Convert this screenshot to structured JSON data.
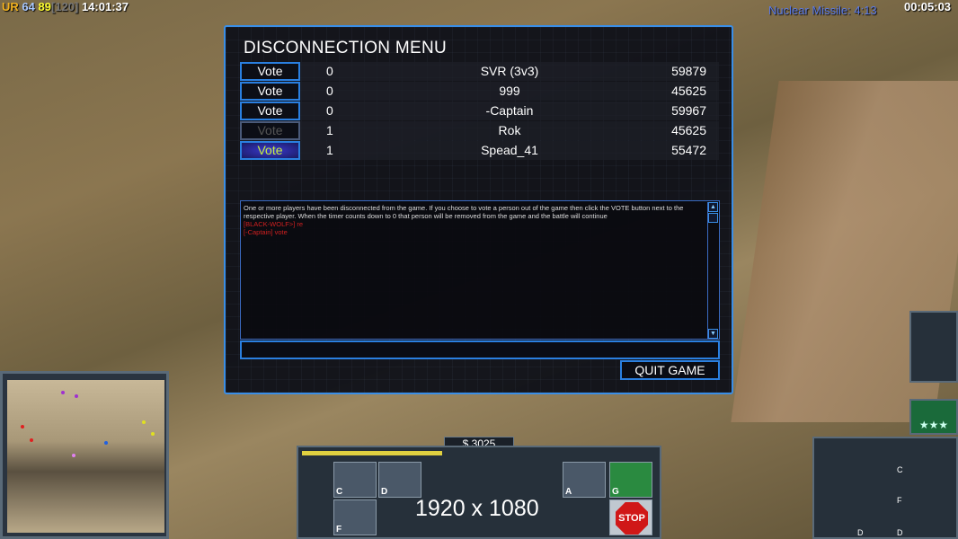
{
  "hud": {
    "faction": "UR",
    "stat1": "64",
    "stat2": "89",
    "stat3": "[120]",
    "clock": "14:01:37",
    "superweapon": "Nuclear Missile: 4:13",
    "game_timer": "00:05:03"
  },
  "dialog": {
    "title": "DISCONNECTION MENU",
    "players": [
      {
        "vote": "Vote",
        "count": "0",
        "name": "SVR (3v3)",
        "ping": "59879",
        "state": "normal"
      },
      {
        "vote": "Vote",
        "count": "0",
        "name": "999",
        "ping": "45625",
        "state": "normal"
      },
      {
        "vote": "Vote",
        "count": "0",
        "name": "-Captain",
        "ping": "59967",
        "state": "normal"
      },
      {
        "vote": "Vote",
        "count": "1",
        "name": "Rok",
        "ping": "45625",
        "state": "disabled"
      },
      {
        "vote": "Vote",
        "count": "1",
        "name": "Spead_41",
        "ping": "55472",
        "state": "highlighted"
      }
    ],
    "message": "One or more players have been disconnected from the game. If you choose to vote a person out of the game then click the VOTE button next to the respective player. When the timer counts down to 0 that person will be removed from the game and the battle will continue",
    "chat": [
      "[BLACK-WOLF>] re",
      "[-Captain] vote"
    ],
    "chat_input": "",
    "quit_label": "QUIT GAME"
  },
  "bottom": {
    "money": "$ 3025",
    "overlay": "1920 x 1080",
    "slots": [
      "C",
      "D",
      "F",
      "A",
      "G",
      "S"
    ],
    "stop_label": "STOP",
    "build_hotkeys": [
      "C",
      "F",
      "D",
      "D"
    ]
  },
  "colors": {
    "accent": "#2a7fe0",
    "chat_red": "#d02020",
    "superweapon": "#5a7ae8"
  }
}
